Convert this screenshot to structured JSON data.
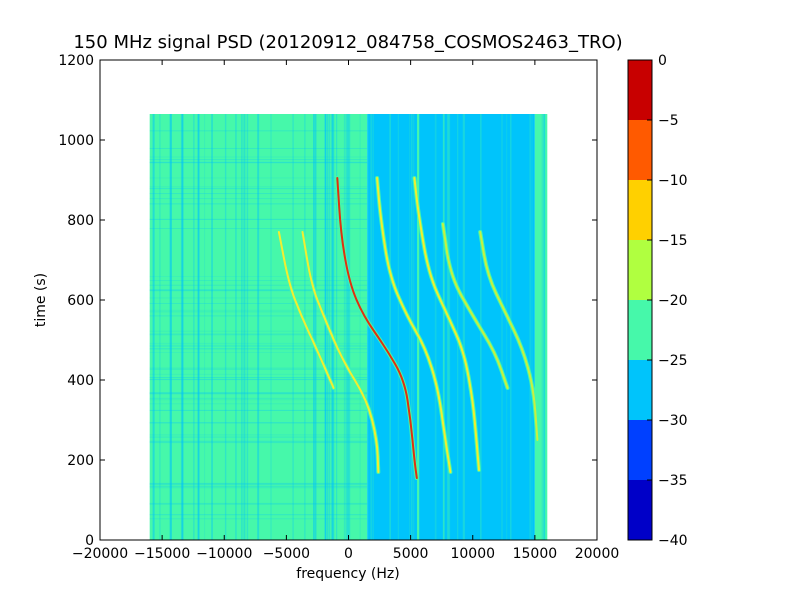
{
  "chart_data": {
    "type": "heatmap",
    "title": "150 MHz signal PSD (20120912_084758_COSMOS2463_TRO)",
    "xlabel": "frequency (Hz)",
    "ylabel": "time (s)",
    "xlim": [
      -20000,
      20000
    ],
    "ylim": [
      0,
      1200
    ],
    "x_ticks": [
      "−20000",
      "−15000",
      "−10000",
      "−5000",
      "0",
      "5000",
      "10000",
      "15000",
      "20000"
    ],
    "x_tick_values": [
      -20000,
      -15000,
      -10000,
      -5000,
      0,
      5000,
      10000,
      15000,
      20000
    ],
    "y_ticks": [
      "0",
      "200",
      "400",
      "600",
      "800",
      "1000",
      "1200"
    ],
    "y_tick_values": [
      0,
      200,
      400,
      600,
      800,
      1000,
      1200
    ],
    "data_extent": {
      "x": [
        -16000,
        16000
      ],
      "y": [
        0,
        1065
      ]
    },
    "background_regions": [
      {
        "x": [
          -16000,
          1500
        ],
        "level": -22,
        "color": "#46f8aa"
      },
      {
        "x": [
          1500,
          15000
        ],
        "level": -27,
        "color": "#00c4fb"
      },
      {
        "x": [
          15000,
          16000
        ],
        "level": -22,
        "color": "#46f8aa"
      }
    ],
    "bright_vertical_lines": [
      {
        "x": 5600,
        "color": "#46f8aa"
      }
    ],
    "traces": [
      {
        "name": "",
        "color": "#f2ee30",
        "points": [
          [
            -5600,
            770
          ],
          [
            -4800,
            640
          ],
          [
            -3800,
            560
          ],
          [
            -2600,
            480
          ],
          [
            -1200,
            380
          ]
        ]
      },
      {
        "name": "",
        "color": "#f2ee30",
        "points": [
          [
            -3700,
            770
          ],
          [
            -3000,
            640
          ],
          [
            -2000,
            560
          ],
          [
            -500,
            450
          ],
          [
            1500,
            350
          ],
          [
            2300,
            250
          ],
          [
            2400,
            170
          ]
        ]
      },
      {
        "name": "",
        "color": "#e03010",
        "points": [
          [
            -900,
            905
          ],
          [
            -600,
            760
          ],
          [
            100,
            640
          ],
          [
            1200,
            560
          ],
          [
            3000,
            480
          ],
          [
            4500,
            400
          ],
          [
            5000,
            300
          ],
          [
            5300,
            200
          ],
          [
            5500,
            155
          ]
        ]
      },
      {
        "name": "",
        "color": "#f2ee30",
        "points": [
          [
            2300,
            905
          ],
          [
            2600,
            800
          ],
          [
            3300,
            660
          ],
          [
            4700,
            560
          ],
          [
            6200,
            480
          ],
          [
            7200,
            380
          ],
          [
            7800,
            250
          ],
          [
            8200,
            170
          ]
        ]
      },
      {
        "name": "",
        "color": "#f2ee30",
        "points": [
          [
            5300,
            905
          ],
          [
            5700,
            800
          ],
          [
            6500,
            660
          ],
          [
            8000,
            560
          ],
          [
            9300,
            470
          ],
          [
            10000,
            350
          ],
          [
            10300,
            250
          ],
          [
            10500,
            175
          ]
        ]
      },
      {
        "name": "",
        "color": "#c8f040",
        "points": [
          [
            7600,
            790
          ],
          [
            8200,
            660
          ],
          [
            10000,
            560
          ],
          [
            11800,
            470
          ],
          [
            12800,
            380
          ]
        ]
      },
      {
        "name": "",
        "color": "#c8f040",
        "points": [
          [
            10600,
            770
          ],
          [
            11200,
            660
          ],
          [
            12600,
            570
          ],
          [
            14000,
            480
          ],
          [
            14900,
            380
          ],
          [
            15200,
            250
          ]
        ]
      }
    ],
    "colorbar": {
      "range": [
        -40,
        0
      ],
      "ticks": [
        "0",
        "−5",
        "−10",
        "−15",
        "−20",
        "−25",
        "−30",
        "−35",
        "−40"
      ],
      "tick_values": [
        0,
        -5,
        -10,
        -15,
        -20,
        -25,
        -30,
        -35,
        -40
      ],
      "colors": [
        "#0000c8",
        "#0040ff",
        "#00c4fb",
        "#46f8aa",
        "#b0ff40",
        "#ffd000",
        "#ff5a00",
        "#c80000"
      ]
    }
  }
}
